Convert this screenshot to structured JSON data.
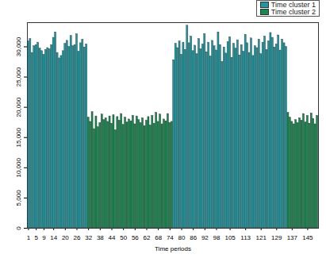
{
  "chart_data": {
    "type": "bar",
    "xlabel": "Time periods",
    "categories": [
      "1",
      null,
      null,
      null,
      "5",
      null,
      null,
      null,
      "9",
      null,
      null,
      null,
      null,
      "14",
      null,
      null,
      null,
      null,
      null,
      "20",
      null,
      null,
      null,
      null,
      null,
      "26",
      null,
      null,
      null,
      null,
      null,
      "32",
      null,
      null,
      null,
      null,
      null,
      "38",
      null,
      null,
      null,
      null,
      null,
      "44",
      null,
      null,
      null,
      null,
      null,
      "50",
      null,
      null,
      null,
      null,
      null,
      "56",
      null,
      null,
      null,
      null,
      null,
      "62",
      null,
      null,
      null,
      null,
      null,
      "68",
      null,
      null,
      null,
      null,
      null,
      "74",
      null,
      null,
      null,
      null,
      null,
      "80",
      null,
      null,
      null,
      null,
      null,
      "86",
      null,
      null,
      null,
      null,
      null,
      "92",
      null,
      null,
      null,
      null,
      null,
      "98",
      null,
      null,
      null,
      null,
      null,
      null,
      "105",
      null,
      null,
      null,
      null,
      null,
      null,
      null,
      "113",
      null,
      null,
      null,
      null,
      null,
      null,
      null,
      "121",
      null,
      null,
      null,
      null,
      null,
      null,
      null,
      "129",
      null,
      null,
      null,
      null,
      null,
      null,
      null,
      "137",
      null,
      null,
      null,
      null,
      null,
      null,
      null,
      "145",
      null,
      null,
      null,
      null,
      null
    ],
    "series": [
      {
        "name": "Time cluster 1",
        "color": "#1c9aa3",
        "values": [
          30900,
          31300,
          29000,
          30100,
          30300,
          30700,
          29700,
          29300,
          28700,
          29500,
          29800,
          29600,
          30300,
          31500,
          32400,
          29000,
          28100,
          28500,
          29300,
          30500,
          31000,
          30000,
          31800,
          30100,
          30300,
          32100,
          29200,
          30600,
          31200,
          29900,
          30400,
          null,
          null,
          null,
          null,
          null,
          null,
          null,
          null,
          null,
          null,
          null,
          null,
          null,
          null,
          null,
          null,
          null,
          null,
          null,
          null,
          null,
          null,
          null,
          null,
          null,
          null,
          null,
          null,
          null,
          null,
          null,
          null,
          null,
          null,
          null,
          null,
          null,
          null,
          null,
          null,
          null,
          null,
          null,
          null,
          27800,
          30500,
          29800,
          30900,
          28700,
          30700,
          29500,
          33500,
          30600,
          31700,
          29300,
          30200,
          28800,
          31300,
          29600,
          30400,
          32100,
          29100,
          30700,
          28400,
          31000,
          30100,
          29400,
          32400,
          30300,
          27500,
          29900,
          28900,
          30800,
          31600,
          28200,
          30500,
          29700,
          31100,
          28600,
          30300,
          29200,
          32000,
          30600,
          29000,
          31400,
          28500,
          30100,
          29800,
          31200,
          28800,
          30700,
          31700,
          29500,
          30900,
          32300,
          31500,
          29900,
          30400,
          31900,
          29400,
          31200,
          30600,
          30000,
          null,
          null,
          null,
          null,
          null,
          null,
          null,
          null,
          null,
          null,
          null,
          null,
          null,
          null,
          null,
          null
        ]
      },
      {
        "name": "Time cluster 2",
        "color": "#138a4e",
        "values": [
          null,
          null,
          null,
          null,
          null,
          null,
          null,
          null,
          null,
          null,
          null,
          null,
          null,
          null,
          null,
          null,
          null,
          null,
          null,
          null,
          null,
          null,
          null,
          null,
          null,
          null,
          null,
          null,
          null,
          null,
          null,
          18300,
          17600,
          19200,
          16400,
          18500,
          16700,
          17400,
          18800,
          17900,
          18200,
          17600,
          18500,
          17300,
          18700,
          16200,
          18400,
          17800,
          18900,
          17100,
          18300,
          17500,
          18000,
          17700,
          18600,
          17200,
          18500,
          17900,
          17400,
          18200,
          16900,
          17800,
          18400,
          17000,
          18600,
          17300,
          19100,
          17600,
          18800,
          17200,
          18000,
          17700,
          18900,
          17400,
          17600,
          null,
          null,
          null,
          null,
          null,
          null,
          null,
          null,
          null,
          null,
          null,
          null,
          null,
          null,
          null,
          null,
          null,
          null,
          null,
          null,
          null,
          null,
          null,
          null,
          null,
          null,
          null,
          null,
          null,
          null,
          null,
          null,
          null,
          null,
          null,
          null,
          null,
          null,
          null,
          null,
          null,
          null,
          null,
          null,
          null,
          null,
          null,
          null,
          null,
          null,
          null,
          null,
          null,
          null,
          null,
          null,
          null,
          null,
          null,
          19100,
          18300,
          17600,
          17200,
          17900,
          17400,
          18200,
          17800,
          18900,
          17500,
          18600,
          17300,
          19000,
          18100,
          17200,
          18600
        ]
      }
    ],
    "ylim": [
      0,
      34000
    ],
    "yticks": [
      0,
      5000,
      10000,
      15000,
      20000,
      25000,
      30000
    ],
    "grid": false,
    "legend": "top-right"
  }
}
